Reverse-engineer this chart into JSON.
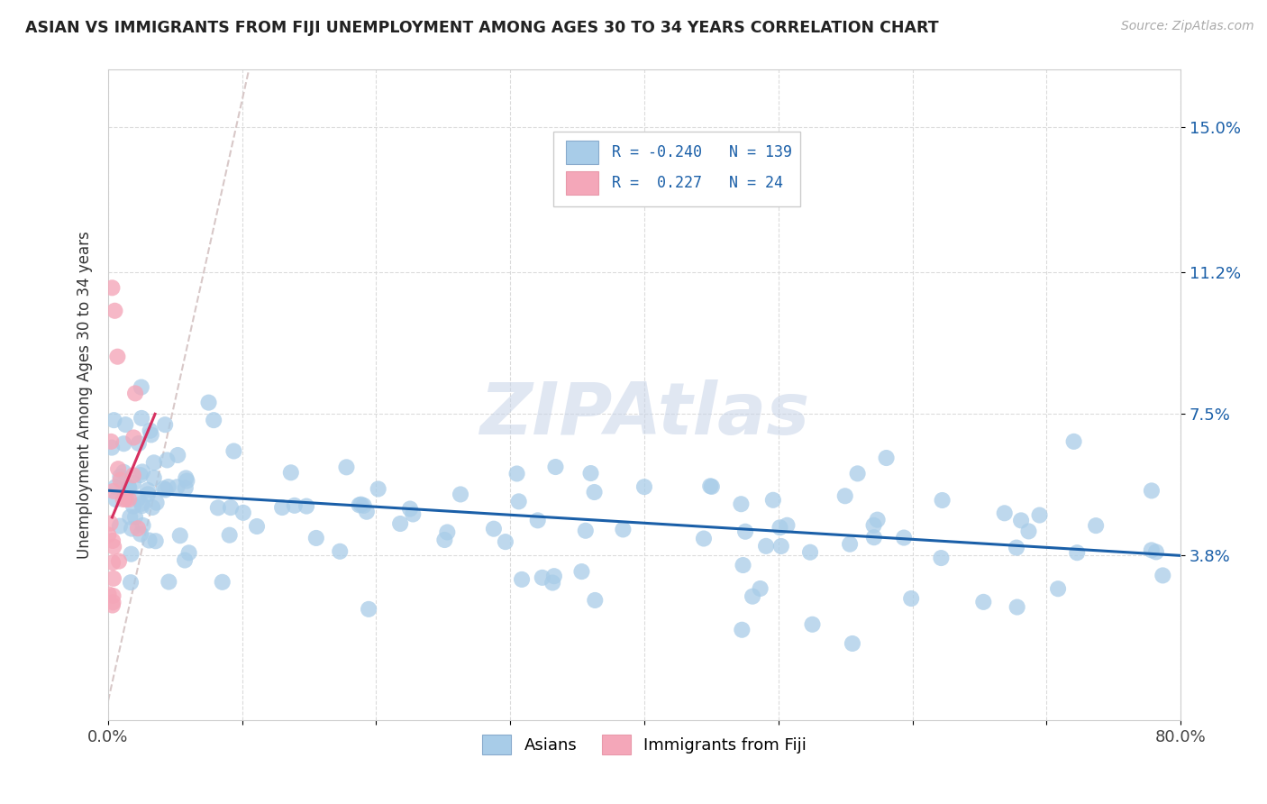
{
  "title": "ASIAN VS IMMIGRANTS FROM FIJI UNEMPLOYMENT AMONG AGES 30 TO 34 YEARS CORRELATION CHART",
  "source": "Source: ZipAtlas.com",
  "ylabel": "Unemployment Among Ages 30 to 34 years",
  "xmin": 0.0,
  "xmax": 80.0,
  "ymin": -0.5,
  "ymax": 16.5,
  "yticks": [
    3.8,
    7.5,
    11.2,
    15.0
  ],
  "ytick_labels": [
    "3.8%",
    "7.5%",
    "11.2%",
    "15.0%"
  ],
  "xtick_labels": [
    "0.0%",
    "",
    "",
    "",
    "",
    "",
    "",
    "",
    "80.0%"
  ],
  "blue_R": -0.24,
  "blue_N": 139,
  "pink_R": 0.227,
  "pink_N": 24,
  "blue_color": "#a8cce8",
  "pink_color": "#f4a7b9",
  "trend_blue_color": "#1a5fa8",
  "trend_pink_color": "#d63060",
  "diag_color": "#d8c8c8",
  "legend_label_blue": "Asians",
  "legend_label_pink": "Immigrants from Fiji",
  "blue_trend_x0": 0.0,
  "blue_trend_y0": 5.5,
  "blue_trend_x1": 80.0,
  "blue_trend_y1": 3.8,
  "pink_trend_x0": 0.3,
  "pink_trend_y0": 4.8,
  "pink_trend_x1": 3.5,
  "pink_trend_y1": 7.5,
  "diag_x0": 0.0,
  "diag_y0": 0.0,
  "diag_x1": 10.5,
  "diag_y1": 16.5
}
